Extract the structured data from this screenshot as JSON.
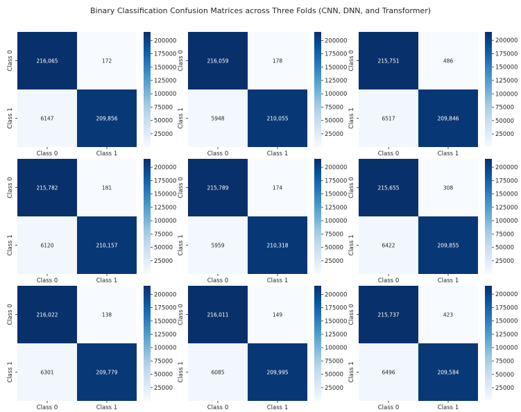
{
  "title": "Binary Classification Confusion Matrices across Three Folds (CNN, DNN, and Transformer)",
  "colorbar_ticks": [
    25000,
    50000,
    75000,
    100000,
    125000,
    150000,
    175000,
    200000
  ],
  "colors": {
    "low": "#f7fbff",
    "high": "#08306b"
  },
  "chart_data": [
    {
      "type": "heatmap",
      "xticklabels": [
        "Class 0",
        "Class 1"
      ],
      "yticklabels": [
        "Class 0",
        "Class 1"
      ],
      "values": [
        [
          216065,
          172
        ],
        [
          6147,
          209856
        ]
      ],
      "labels": [
        [
          "216,065",
          "172"
        ],
        [
          "6147",
          "209,856"
        ]
      ],
      "vmin": 172,
      "vmax": 216065
    },
    {
      "type": "heatmap",
      "xticklabels": [
        "Class 0",
        "Class 1"
      ],
      "yticklabels": [
        "Class 0",
        "Class 1"
      ],
      "values": [
        [
          216059,
          178
        ],
        [
          5948,
          210055
        ]
      ],
      "labels": [
        [
          "216,059",
          "178"
        ],
        [
          "5948",
          "210,055"
        ]
      ],
      "vmin": 178,
      "vmax": 216059
    },
    {
      "type": "heatmap",
      "xticklabels": [
        "Class 0",
        "Class 1"
      ],
      "yticklabels": [
        "Class 0",
        "Class 1"
      ],
      "values": [
        [
          215751,
          486
        ],
        [
          6517,
          209846
        ]
      ],
      "labels": [
        [
          "215,751",
          "486"
        ],
        [
          "6517",
          "209,846"
        ]
      ],
      "vmin": 486,
      "vmax": 215751
    },
    {
      "type": "heatmap",
      "xticklabels": [
        "Class 0",
        "Class 1"
      ],
      "yticklabels": [
        "Class 0",
        "Class 1"
      ],
      "values": [
        [
          215782,
          181
        ],
        [
          6120,
          210157
        ]
      ],
      "labels": [
        [
          "215,782",
          "181"
        ],
        [
          "6120",
          "210,157"
        ]
      ],
      "vmin": 181,
      "vmax": 215782
    },
    {
      "type": "heatmap",
      "xticklabels": [
        "Class 0",
        "Class 1"
      ],
      "yticklabels": [
        "Class 0",
        "Class 1"
      ],
      "values": [
        [
          215789,
          174
        ],
        [
          5959,
          210318
        ]
      ],
      "labels": [
        [
          "215,789",
          "174"
        ],
        [
          "5959",
          "210,318"
        ]
      ],
      "vmin": 174,
      "vmax": 215789
    },
    {
      "type": "heatmap",
      "xticklabels": [
        "Class 0",
        "Class 1"
      ],
      "yticklabels": [
        "Class 0",
        "Class 1"
      ],
      "values": [
        [
          215655,
          308
        ],
        [
          6422,
          209855
        ]
      ],
      "labels": [
        [
          "215,655",
          "308"
        ],
        [
          "6422",
          "209,855"
        ]
      ],
      "vmin": 308,
      "vmax": 215655
    },
    {
      "type": "heatmap",
      "xticklabels": [
        "Class 0",
        "Class 1"
      ],
      "yticklabels": [
        "Class 0",
        "Class 1"
      ],
      "values": [
        [
          216022,
          138
        ],
        [
          6301,
          209779
        ]
      ],
      "labels": [
        [
          "216,022",
          "138"
        ],
        [
          "6301",
          "209,779"
        ]
      ],
      "vmin": 138,
      "vmax": 216022
    },
    {
      "type": "heatmap",
      "xticklabels": [
        "Class 0",
        "Class 1"
      ],
      "yticklabels": [
        "Class 0",
        "Class 1"
      ],
      "values": [
        [
          216011,
          149
        ],
        [
          6085,
          209995
        ]
      ],
      "labels": [
        [
          "216,011",
          "149"
        ],
        [
          "6085",
          "209,995"
        ]
      ],
      "vmin": 149,
      "vmax": 216011
    },
    {
      "type": "heatmap",
      "xticklabels": [
        "Class 0",
        "Class 1"
      ],
      "yticklabels": [
        "Class 0",
        "Class 1"
      ],
      "values": [
        [
          215737,
          423
        ],
        [
          6496,
          209584
        ]
      ],
      "labels": [
        [
          "215,737",
          "423"
        ],
        [
          "6496",
          "209,584"
        ]
      ],
      "vmin": 423,
      "vmax": 215737
    }
  ]
}
